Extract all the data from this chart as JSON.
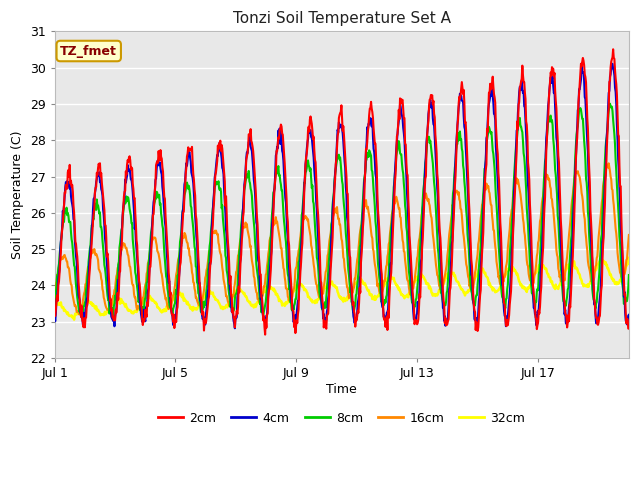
{
  "title": "Tonzi Soil Temperature Set A",
  "xlabel": "Time",
  "ylabel": "Soil Temperature (C)",
  "ylim": [
    22.0,
    31.0
  ],
  "yticks": [
    22.0,
    23.0,
    24.0,
    25.0,
    26.0,
    27.0,
    28.0,
    29.0,
    30.0,
    31.0
  ],
  "xlim_days": [
    0,
    19.0
  ],
  "xtick_positions": [
    0,
    4,
    8,
    12,
    16
  ],
  "xtick_labels": [
    "Jul 1",
    "Jul 5",
    "Jul 9",
    "Jul 13",
    "Jul 17"
  ],
  "legend_labels": [
    "2cm",
    "4cm",
    "8cm",
    "16cm",
    "32cm"
  ],
  "legend_colors": [
    "#ff0000",
    "#0000cc",
    "#00cc00",
    "#ff8800",
    "#ffff00"
  ],
  "annotation_text": "TZ_fmet",
  "annotation_bg": "#ffffcc",
  "annotation_border": "#cc9900",
  "fig_bg": "#ffffff",
  "plot_bg": "#e8e8e8",
  "grid_color": "#ffffff",
  "n_days": 19,
  "n_points_per_day": 48
}
